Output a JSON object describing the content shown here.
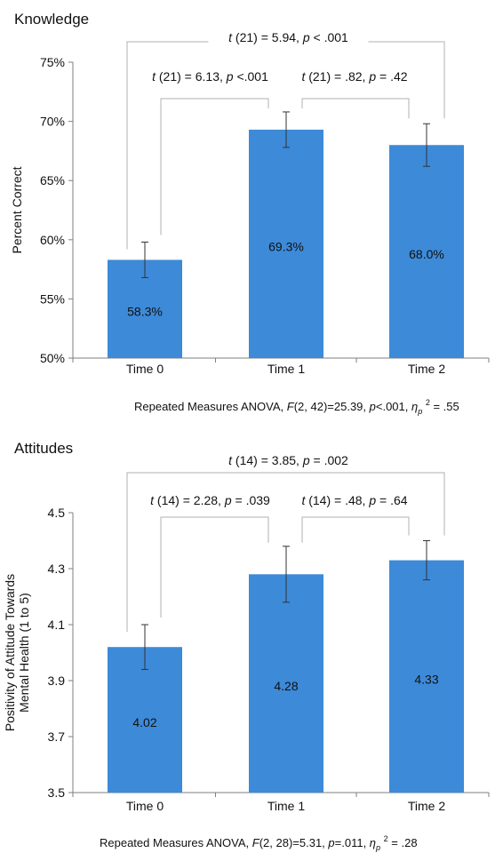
{
  "chart_data": [
    {
      "type": "bar",
      "title": "Knowledge",
      "ylabel": "Percent Correct",
      "xlabel": "",
      "categories": [
        "Time 0",
        "Time 1",
        "Time 2"
      ],
      "values": [
        58.3,
        69.3,
        68.0
      ],
      "value_labels": [
        "58.3%",
        "69.3%",
        "68.0%"
      ],
      "error": [
        1.5,
        1.5,
        1.8
      ],
      "ylim": [
        50,
        75
      ],
      "yticks": [
        50,
        55,
        60,
        65,
        70,
        75
      ],
      "ytick_labels": [
        "50%",
        "55%",
        "60%",
        "65%",
        "70%",
        "75%"
      ],
      "bar_color": "#3d8ad8",
      "comparisons": [
        {
          "from": 0,
          "to": 2,
          "stat": "t",
          "df": "(21) = 5.94,",
          "p": "p",
          "prest": " < .001"
        },
        {
          "from": 0,
          "to": 1,
          "stat": "t",
          "df": "(21) = 6.13,",
          "p": "p",
          "prest": " <.001"
        },
        {
          "from": 1,
          "to": 2,
          "stat": "t",
          "df": "(21) = .82,",
          "p": "p",
          "prest": " = .42"
        }
      ],
      "footnote": {
        "lead": "Repeated Measures ANOVA, ",
        "F": "F",
        "mid": "(2, 42)=25.39, ",
        "p": "p",
        "mid2": "<.001, ",
        "eta": "η",
        "eta_sub": "p",
        "eta_sup": "2",
        "tail": " = .55"
      }
    },
    {
      "type": "bar",
      "title": "Attitudes",
      "ylabel": "Positivity of Attitude Towards Mental Health (1 to 5)",
      "ylabel_lines": [
        "Positivity of Attitude Towards",
        "Mental Health (1 to 5)"
      ],
      "xlabel": "",
      "categories": [
        "Time 0",
        "Time 1",
        "Time 2"
      ],
      "values": [
        4.02,
        4.28,
        4.33
      ],
      "value_labels": [
        "4.02",
        "4.28",
        "4.33"
      ],
      "error": [
        0.08,
        0.1,
        0.07
      ],
      "ylim": [
        3.5,
        4.5
      ],
      "yticks": [
        3.5,
        3.7,
        3.9,
        4.1,
        4.3,
        4.5
      ],
      "ytick_labels": [
        "3.5",
        "3.7",
        "3.9",
        "4.1",
        "4.3",
        "4.5"
      ],
      "bar_color": "#3d8ad8",
      "comparisons": [
        {
          "from": 0,
          "to": 2,
          "stat": "t",
          "df": "(14) = 3.85,",
          "p": "p",
          "prest": " = .002"
        },
        {
          "from": 0,
          "to": 1,
          "stat": "t",
          "df": "(14) = 2.28,",
          "p": "p",
          "prest": " = .039"
        },
        {
          "from": 1,
          "to": 2,
          "stat": "t",
          "df": "(14) = .48,",
          "p": "p",
          "prest": " = .64"
        }
      ],
      "footnote": {
        "lead": "Repeated Measures ANOVA, ",
        "F": "F",
        "mid": "(2, 28)=5.31, ",
        "p": "p",
        "mid2": "=.011, ",
        "eta": "η",
        "eta_sub": "p",
        "eta_sup": "2",
        "tail": " = .28"
      }
    }
  ]
}
